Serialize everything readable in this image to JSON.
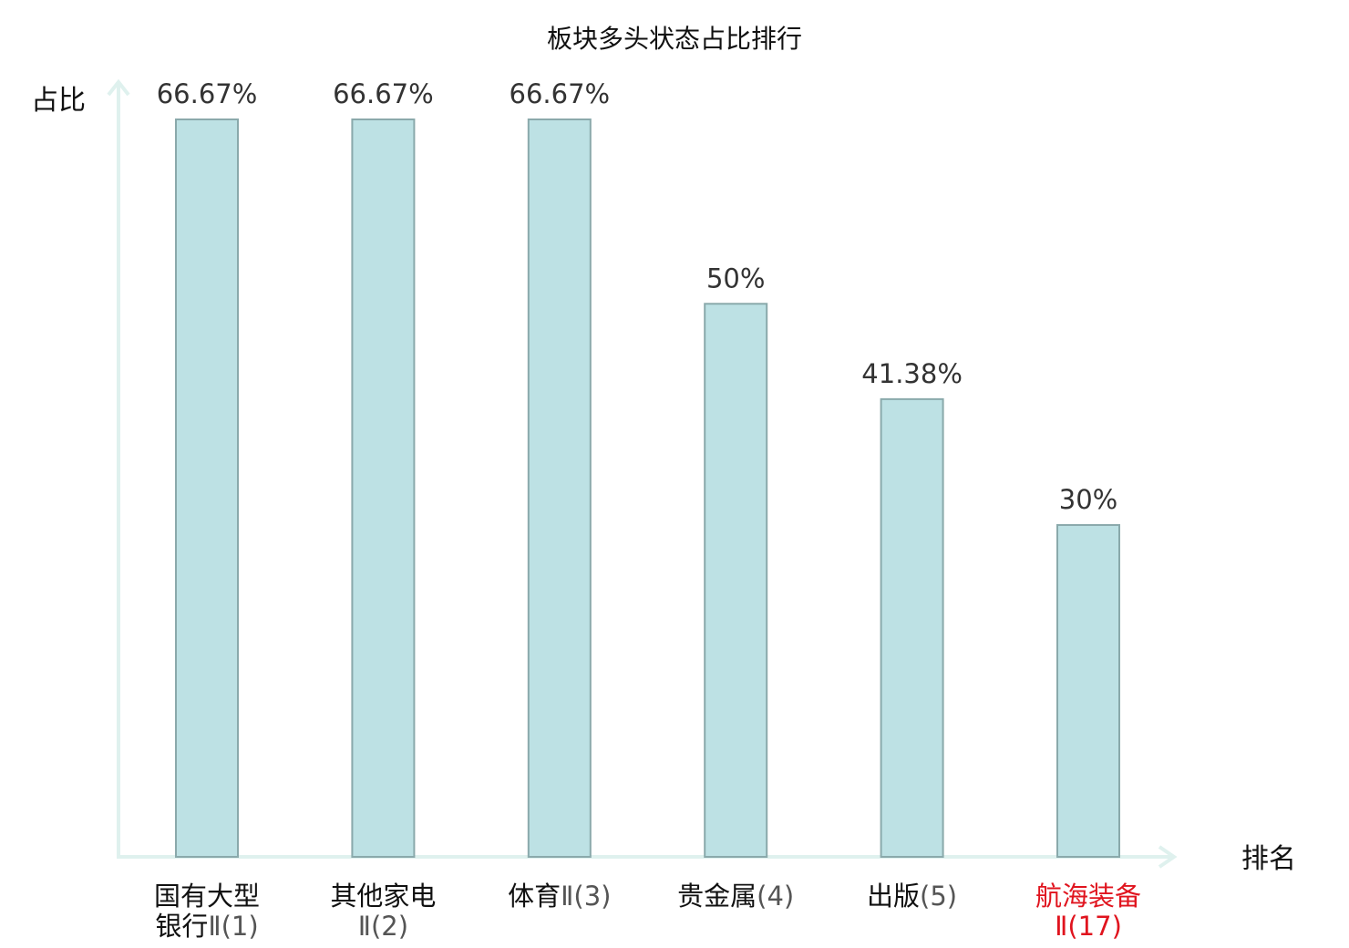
{
  "chart_data": {
    "type": "bar",
    "title": "板块多头状态占比排行",
    "ylabel": "占比",
    "xlabel": "排名",
    "ylim": [
      0,
      70
    ],
    "grid": false,
    "categories": [
      {
        "line1": "国有大型",
        "line2_name": "银行",
        "line2_rank": "Ⅱ(1)",
        "highlight": false
      },
      {
        "line1": "其他家电",
        "line2_name": "",
        "line2_rank": "Ⅱ(2)",
        "highlight": false
      },
      {
        "line1": "体育",
        "line1_rank": "Ⅱ(3)",
        "highlight": false
      },
      {
        "line1": "贵金属",
        "line1_rank": "(4)",
        "highlight": false
      },
      {
        "line1": "出版",
        "line1_rank": "(5)",
        "highlight": false
      },
      {
        "line1": "航海装备",
        "line2_name": "",
        "line2_rank": "Ⅱ(17)",
        "highlight": true
      }
    ],
    "values": [
      66.67,
      66.67,
      66.67,
      50,
      41.38,
      30
    ],
    "value_labels": [
      "66.67%",
      "66.67%",
      "66.67%",
      "50%",
      "41.38%",
      "30%"
    ],
    "colors": {
      "bar_fill": "#bde1e4",
      "bar_stroke": "#8aa9ab",
      "axis": "#dff1ee",
      "highlight": "#e0141e"
    }
  }
}
